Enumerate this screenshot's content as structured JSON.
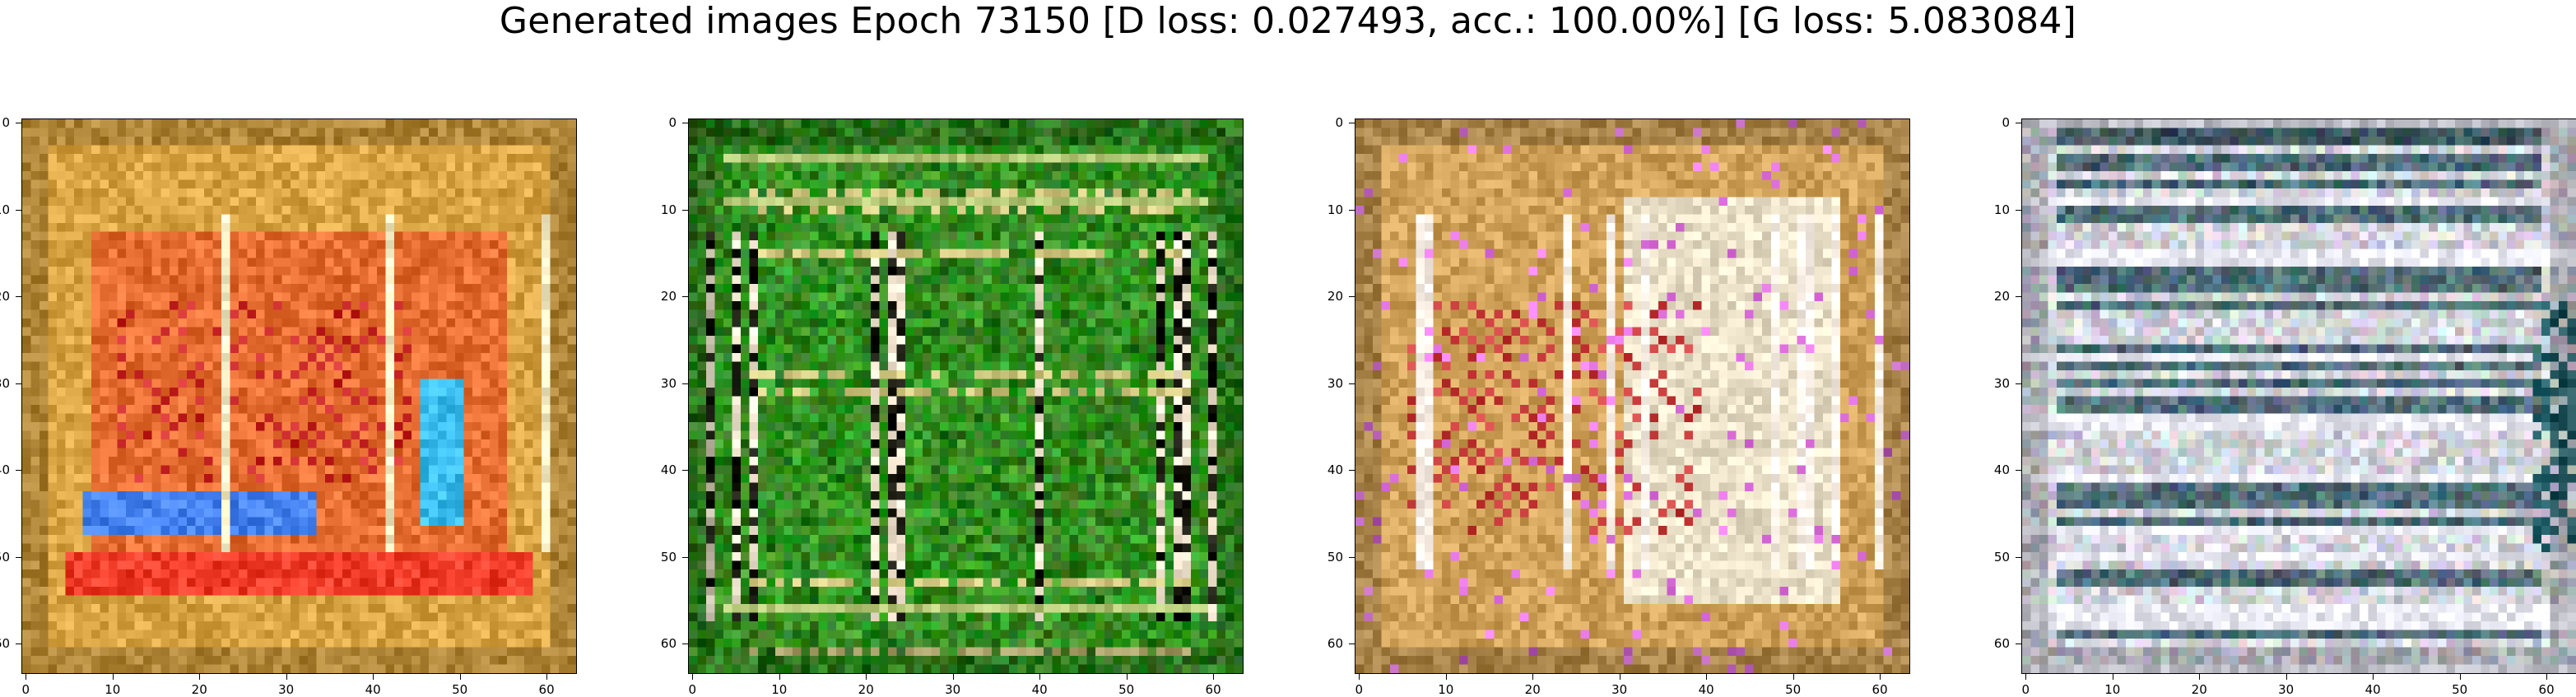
{
  "figure": {
    "title": "Generated images Epoch 73150 [D loss: 0.027493, acc.: 100.00%] [G loss: 5.083084]"
  },
  "axis": {
    "xticks": [
      "0",
      "10",
      "20",
      "30",
      "40",
      "50",
      "60"
    ],
    "yticks": [
      "0",
      "10",
      "20",
      "30",
      "40",
      "50",
      "60"
    ],
    "xlim": [
      -0.5,
      63.5
    ],
    "ylim": [
      63.5,
      -0.5
    ]
  },
  "panels": [
    {
      "id": "sample-1",
      "palette": "orange-red-blue",
      "base": "#d9a545"
    },
    {
      "id": "sample-2",
      "palette": "green-white",
      "base": "#1f7a12"
    },
    {
      "id": "sample-3",
      "palette": "orange-cream",
      "base": "#d1a35a"
    },
    {
      "id": "sample-4",
      "palette": "gray-blue",
      "base": "#c3c6cf"
    }
  ]
}
